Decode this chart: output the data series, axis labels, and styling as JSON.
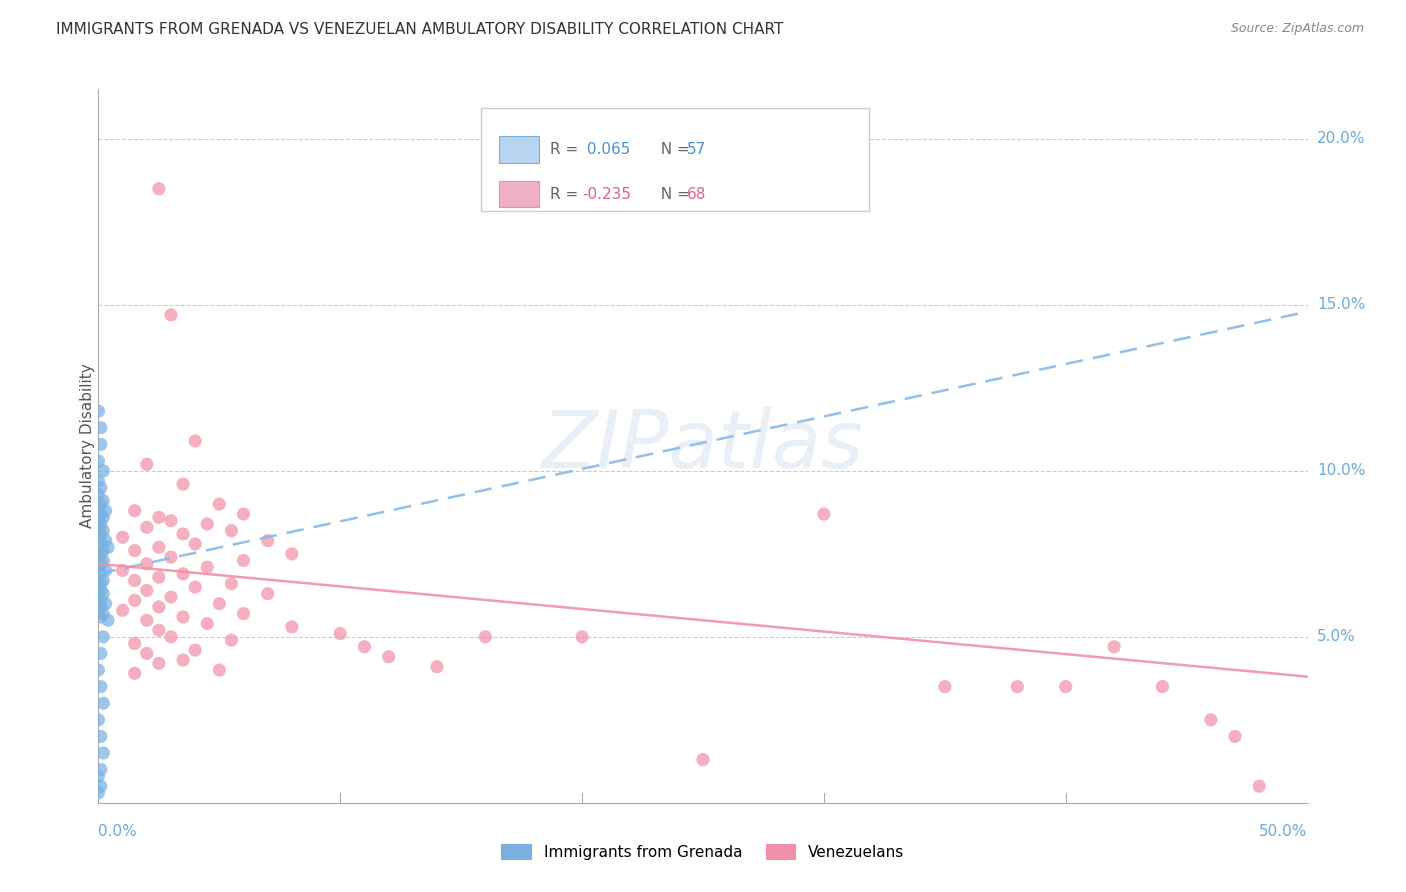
{
  "title": "IMMIGRANTS FROM GRENADA VS VENEZUELAN AMBULATORY DISABILITY CORRELATION CHART",
  "source": "Source: ZipAtlas.com",
  "ylabel": "Ambulatory Disability",
  "legend_label_blue": "Immigrants from Grenada",
  "legend_label_pink": "Venezuelans",
  "grenada_color": "#7ab0e0",
  "venezuelan_color": "#f090a8",
  "grenada_legend_color": "#b8d4f0",
  "venezuelan_legend_color": "#f0b0c4",
  "watermark": "ZIPatlas",
  "xlim": [
    0.0,
    0.5
  ],
  "ylim": [
    0.0,
    0.215
  ],
  "right_ytick_vals": [
    0.05,
    0.1,
    0.15,
    0.2
  ],
  "right_ytick_labels": [
    "5.0%",
    "10.0%",
    "15.0%",
    "20.0%"
  ],
  "blue_line_x": [
    0.0,
    0.5
  ],
  "blue_line_y": [
    0.069,
    0.148
  ],
  "pink_line_x": [
    0.0,
    0.5
  ],
  "pink_line_y": [
    0.072,
    0.038
  ],
  "grenada_points_x": [
    0.0,
    0.001,
    0.001,
    0.0,
    0.002,
    0.0,
    0.001,
    0.0,
    0.002,
    0.001,
    0.0,
    0.003,
    0.001,
    0.002,
    0.0,
    0.001,
    0.0,
    0.002,
    0.001,
    0.0,
    0.003,
    0.001,
    0.004,
    0.002,
    0.001,
    0.0,
    0.002,
    0.001,
    0.0,
    0.003,
    0.001,
    0.0,
    0.002,
    0.001,
    0.0,
    0.001,
    0.002,
    0.0,
    0.001,
    0.003,
    0.001,
    0.0,
    0.002,
    0.001,
    0.004,
    0.002,
    0.001,
    0.0,
    0.001,
    0.002,
    0.0,
    0.001,
    0.002,
    0.001,
    0.0,
    0.001,
    0.0
  ],
  "grenada_points_y": [
    0.118,
    0.113,
    0.108,
    0.103,
    0.1,
    0.097,
    0.095,
    0.093,
    0.091,
    0.09,
    0.089,
    0.088,
    0.087,
    0.086,
    0.085,
    0.084,
    0.083,
    0.082,
    0.081,
    0.08,
    0.079,
    0.078,
    0.077,
    0.076,
    0.075,
    0.074,
    0.073,
    0.072,
    0.071,
    0.07,
    0.069,
    0.068,
    0.067,
    0.066,
    0.065,
    0.064,
    0.063,
    0.062,
    0.061,
    0.06,
    0.059,
    0.058,
    0.057,
    0.056,
    0.055,
    0.05,
    0.045,
    0.04,
    0.035,
    0.03,
    0.025,
    0.02,
    0.015,
    0.01,
    0.008,
    0.005,
    0.003
  ],
  "venezuelan_points_x": [
    0.025,
    0.03,
    0.04,
    0.02,
    0.035,
    0.05,
    0.015,
    0.06,
    0.025,
    0.03,
    0.045,
    0.02,
    0.055,
    0.035,
    0.01,
    0.07,
    0.04,
    0.025,
    0.015,
    0.08,
    0.03,
    0.06,
    0.02,
    0.045,
    0.01,
    0.035,
    0.025,
    0.015,
    0.055,
    0.04,
    0.02,
    0.07,
    0.03,
    0.015,
    0.05,
    0.025,
    0.01,
    0.06,
    0.035,
    0.02,
    0.045,
    0.08,
    0.025,
    0.1,
    0.03,
    0.055,
    0.015,
    0.11,
    0.04,
    0.02,
    0.12,
    0.035,
    0.025,
    0.14,
    0.05,
    0.015,
    0.3,
    0.35,
    0.38,
    0.4,
    0.42,
    0.44,
    0.46,
    0.47,
    0.25,
    0.2,
    0.48,
    0.16
  ],
  "venezuelan_points_y": [
    0.185,
    0.147,
    0.109,
    0.102,
    0.096,
    0.09,
    0.088,
    0.087,
    0.086,
    0.085,
    0.084,
    0.083,
    0.082,
    0.081,
    0.08,
    0.079,
    0.078,
    0.077,
    0.076,
    0.075,
    0.074,
    0.073,
    0.072,
    0.071,
    0.07,
    0.069,
    0.068,
    0.067,
    0.066,
    0.065,
    0.064,
    0.063,
    0.062,
    0.061,
    0.06,
    0.059,
    0.058,
    0.057,
    0.056,
    0.055,
    0.054,
    0.053,
    0.052,
    0.051,
    0.05,
    0.049,
    0.048,
    0.047,
    0.046,
    0.045,
    0.044,
    0.043,
    0.042,
    0.041,
    0.04,
    0.039,
    0.087,
    0.035,
    0.035,
    0.035,
    0.047,
    0.035,
    0.025,
    0.02,
    0.013,
    0.05,
    0.005,
    0.05
  ]
}
